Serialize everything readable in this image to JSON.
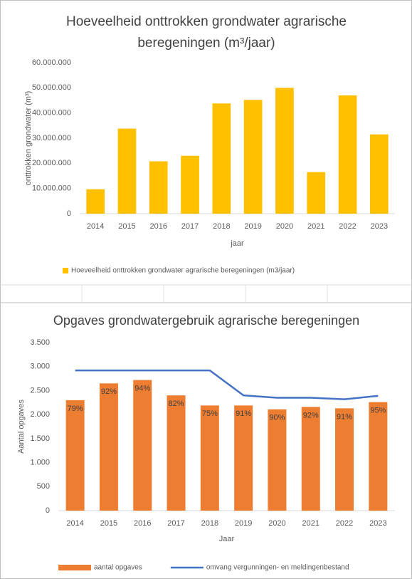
{
  "chart_data": [
    {
      "type": "bar",
      "title": "Hoeveelheid onttrokken grondwater agrarische beregeningen (m³/jaar)",
      "y_label": "onttrokken grondwater (m³)",
      "x_label": "jaar",
      "categories": [
        "2014",
        "2015",
        "2016",
        "2017",
        "2018",
        "2019",
        "2020",
        "2021",
        "2022",
        "2023"
      ],
      "series": [
        {
          "name": "Hoeveelheid onttrokken grondwater agrarische beregeningen (m3/jaar)",
          "color": "#ffc000",
          "values": [
            9700000,
            33800000,
            20800000,
            23000000,
            43800000,
            45200000,
            50000000,
            16500000,
            47000000,
            31500000
          ]
        }
      ],
      "ylim": [
        0,
        60000000
      ],
      "yticks": [
        0,
        {
          "value": 10000000,
          "label": "10.000.000"
        },
        {
          "value": 20000000,
          "label": "20.000.000"
        },
        {
          "value": 30000000,
          "label": "30.000.000"
        },
        {
          "value": 40000000,
          "label": "40.000.000"
        },
        {
          "value": 50000000,
          "label": "50.000.000"
        },
        {
          "value": 60000000,
          "label": "60.000.000"
        }
      ],
      "grid": false,
      "legend": "bottom"
    },
    {
      "type": "combo",
      "title": "Opgaves grondwatergebruik agrarische beregeningen",
      "y_label": "Aantal opgaves",
      "x_label": "Jaar",
      "categories": [
        "2014",
        "2015",
        "2016",
        "2017",
        "2018",
        "2019",
        "2020",
        "2021",
        "2022",
        "2023"
      ],
      "series": [
        {
          "name": "aantal opgaves",
          "type": "bar",
          "color": "#ed7d31",
          "values": [
            2300,
            2650,
            2720,
            2400,
            2190,
            2190,
            2110,
            2160,
            2130,
            2260
          ],
          "percent_values": [
            79,
            92,
            94,
            82,
            75,
            91,
            90,
            92,
            91,
            95
          ],
          "percent_labels": [
            "79%",
            "92%",
            "94%",
            "82%",
            "75%",
            "91%",
            "90%",
            "92%",
            "91%",
            "95%"
          ]
        },
        {
          "name": "omvang vergunningen- en meldingenbestand",
          "type": "line",
          "color": "#4472c4",
          "values": [
            2920,
            2920,
            2920,
            2920,
            2920,
            2400,
            2350,
            2350,
            2320,
            2390
          ]
        }
      ],
      "ylim": [
        0,
        3500
      ],
      "yticks": [
        0,
        500,
        {
          "value": 1000,
          "label": "1.000"
        },
        {
          "value": 1500,
          "label": "1.500"
        },
        {
          "value": 2000,
          "label": "2.000"
        },
        {
          "value": 2500,
          "label": "2.500"
        },
        {
          "value": 3000,
          "label": "3.000"
        },
        {
          "value": 3500,
          "label": "3.500"
        }
      ],
      "grid": false,
      "legend": "bottom"
    }
  ]
}
